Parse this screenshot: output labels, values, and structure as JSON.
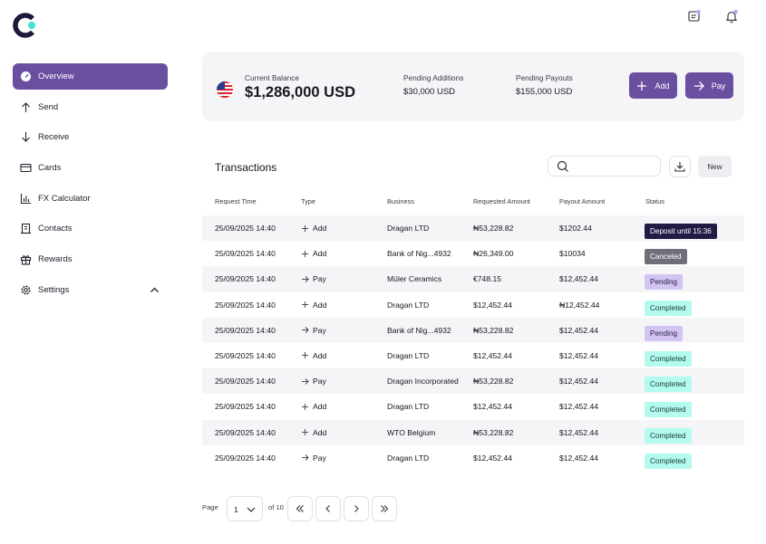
{
  "sidebar": {
    "items": [
      {
        "label": "Overview",
        "icon": "gauge-icon"
      },
      {
        "label": "Send",
        "icon": "arrow-up-icon"
      },
      {
        "label": "Receive",
        "icon": "arrow-down-icon"
      },
      {
        "label": "Cards",
        "icon": "card-icon"
      },
      {
        "label": "FX Calculator",
        "icon": "bar-chart-icon"
      },
      {
        "label": "Contacts",
        "icon": "building-icon"
      },
      {
        "label": "Rewards",
        "icon": "gift-icon"
      },
      {
        "label": "Settings",
        "icon": "gear-icon"
      }
    ]
  },
  "balance": {
    "current_label": "Current Balance",
    "current_value": "$1,286,000 USD",
    "pending_additions_label": "Pending  Additions",
    "pending_additions_value": "$30,000 USD",
    "pending_payouts_label": "Pending  Payouts",
    "pending_payouts_value": "$155,000 USD",
    "add_label": "Add",
    "pay_label": "Pay"
  },
  "transactions": {
    "title": "Transactions",
    "search_placeholder": "",
    "new_label": "New",
    "columns": [
      "Request Time",
      "Type",
      "Business",
      "Requested Amount",
      "Payout Amount",
      "Status"
    ],
    "rows": [
      {
        "time": "25/09/2025 14:40",
        "type": "Add",
        "business": "Dragan LTD",
        "requested": "₦53,228.82",
        "payout": "$1202.44",
        "status": "Deposit until 15:36",
        "kind": "deposit"
      },
      {
        "time": "25/09/2025 14:40",
        "type": "Add",
        "business": "Bank of Nig...4932",
        "requested": "₦26,349.00",
        "payout": "$10034",
        "status": "Canceled",
        "kind": "canceled"
      },
      {
        "time": "25/09/2025 14:40",
        "type": "Pay",
        "business": "Müler Ceramics",
        "requested": "€748.15",
        "payout": "$12,452.44",
        "status": "Pending",
        "kind": "pending"
      },
      {
        "time": "25/09/2025 14:40",
        "type": "Add",
        "business": "Dragan LTD",
        "requested": "$12,452.44",
        "payout": "₦12,452.44",
        "status": "Completed",
        "kind": "completed"
      },
      {
        "time": "25/09/2025 14:40",
        "type": "Pay",
        "business": "Bank of Nig...4932",
        "requested": "₦53,228.82",
        "payout": "$12,452.44",
        "status": "Pending",
        "kind": "pending"
      },
      {
        "time": "25/09/2025 14:40",
        "type": "Add",
        "business": "Dragan LTD",
        "requested": "$12,452.44",
        "payout": "$12,452.44",
        "status": "Completed",
        "kind": "completed"
      },
      {
        "time": "25/09/2025 14:40",
        "type": "Pay",
        "business": "Dragan Incorporated",
        "requested": "₦53,228.82",
        "payout": "$12,452.44",
        "status": "Completed",
        "kind": "completed"
      },
      {
        "time": "25/09/2025 14:40",
        "type": "Add",
        "business": "Dragan LTD",
        "requested": "$12,452.44",
        "payout": "$12,452.44",
        "status": "Completed",
        "kind": "completed"
      },
      {
        "time": "25/09/2025 14:40",
        "type": "Add",
        "business": "WTO Belgium",
        "requested": "₦53,228.82",
        "payout": "$12,452.44",
        "status": "Completed",
        "kind": "completed"
      },
      {
        "time": "25/09/2025 14:40",
        "type": "Pay",
        "business": "Dragan LTD",
        "requested": "$12,452.44",
        "payout": "$12,452.44",
        "status": "Completed",
        "kind": "completed"
      }
    ]
  },
  "pagination": {
    "page_label": "Page",
    "current_page": "1",
    "of_label": "of 10"
  },
  "colors": {
    "accent": "#6a4fa0",
    "deposit": "#231a45",
    "canceled": "#6f6f7a",
    "pending": "#d3c4f3",
    "completed": "#b4fbef"
  }
}
